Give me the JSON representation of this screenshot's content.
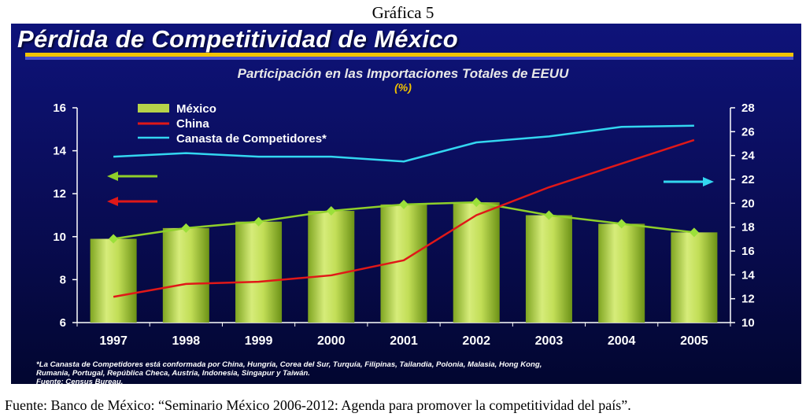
{
  "caption": "Gráfica 5",
  "title": "Pérdida de Competitividad de México",
  "source_line": "Fuente: Banco de México: “Seminario México 2006-2012: Agenda para promover la competitividad del país”.",
  "footnote": {
    "line1": "*La Canasta de Competidores está conformada por China, Hungría, Corea del Sur, Turquía, Filipinas, Tailandia, Polonia, Malasia, Hong Kong,",
    "line2": "Rumania, Portugal, República Checa, Austria, Indonesia, Singapur y Taiwán.",
    "line3": "Fuente: Census Bureau."
  },
  "colors": {
    "mexico": "#b6d34a",
    "china": "#e01818",
    "canasta": "#33d6f0",
    "mexico_arrow": "#8fcf2a",
    "china_arrow": "#e01818",
    "canasta_arrow": "#33d6f0"
  },
  "chart_data": {
    "type": "bar",
    "title": "Participación en las Importaciones Totales de EEUU",
    "unit": "(%)",
    "categories": [
      "1997",
      "1998",
      "1999",
      "2000",
      "2001",
      "2002",
      "2003",
      "2004",
      "2005"
    ],
    "left_axis": {
      "ylim": [
        6,
        16
      ],
      "ticks": [
        6,
        8,
        10,
        12,
        14,
        16
      ]
    },
    "right_axis": {
      "ylim": [
        10,
        28
      ],
      "ticks": [
        10,
        12,
        14,
        16,
        18,
        20,
        22,
        24,
        26,
        28
      ]
    },
    "series": [
      {
        "name": "México",
        "kind": "bar+line",
        "axis": "left",
        "values": [
          9.9,
          10.4,
          10.7,
          11.2,
          11.5,
          11.6,
          11.0,
          10.6,
          10.2
        ]
      },
      {
        "name": "China",
        "kind": "line",
        "axis": "left",
        "values": [
          7.2,
          7.8,
          7.9,
          8.2,
          8.9,
          11.0,
          12.3,
          13.4,
          14.5
        ]
      },
      {
        "name": "Canasta de Competidores*",
        "kind": "line",
        "axis": "right",
        "values": [
          23.9,
          24.2,
          23.9,
          23.9,
          23.5,
          25.1,
          25.6,
          26.4,
          26.5
        ]
      }
    ],
    "legend": [
      "México",
      "China",
      "Canasta de Competidores*"
    ],
    "legend_position": "top-left"
  }
}
